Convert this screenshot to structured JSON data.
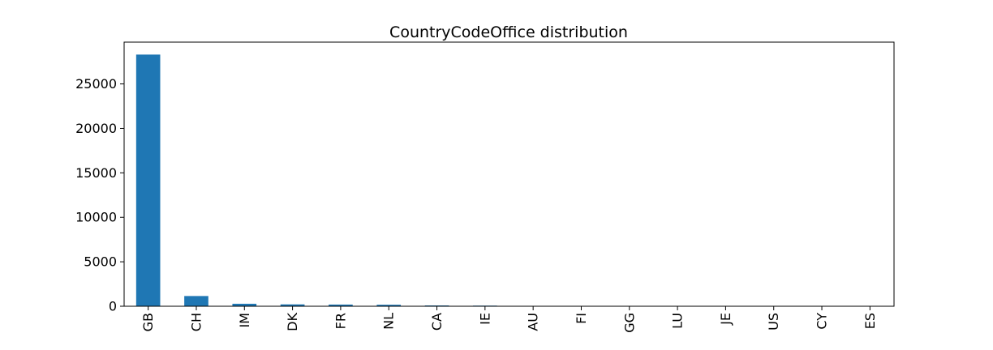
{
  "chart_data": {
    "type": "bar",
    "title": "CountryCodeOffice distribution",
    "xlabel": "",
    "ylabel": "",
    "categories": [
      "GB",
      "CH",
      "IM",
      "DK",
      "FR",
      "NL",
      "CA",
      "IE",
      "AU",
      "FI",
      "GG",
      "LU",
      "JE",
      "US",
      "CY",
      "ES"
    ],
    "values": [
      28300,
      1150,
      280,
      210,
      190,
      170,
      90,
      70,
      20,
      15,
      12,
      10,
      8,
      6,
      4,
      2
    ],
    "ylim": [
      0,
      29700
    ],
    "yticks": [
      0,
      5000,
      10000,
      15000,
      20000,
      25000
    ],
    "yticklabels": [
      "0",
      "5000",
      "10000",
      "15000",
      "20000",
      "25000"
    ],
    "grid": false,
    "legend": "none",
    "colors": {
      "bar": "#1f77b4",
      "axis": "#000000",
      "background": "#ffffff"
    }
  }
}
